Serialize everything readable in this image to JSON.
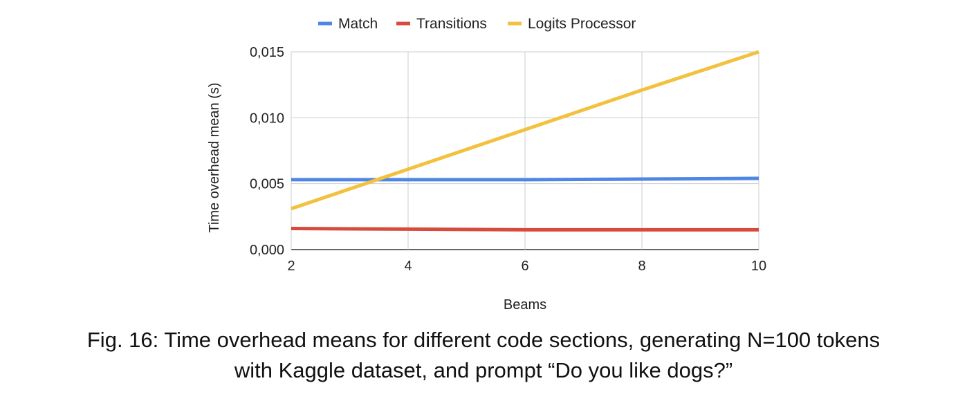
{
  "chart_data": {
    "type": "line",
    "xlabel": "Beams",
    "ylabel": "Time overhead mean (s)",
    "x": [
      2,
      4,
      6,
      8,
      10
    ],
    "xlim": [
      2,
      10
    ],
    "ylim": [
      0,
      0.015
    ],
    "xticks": [
      "2",
      "4",
      "6",
      "8",
      "10"
    ],
    "yticks": [
      "0,000",
      "0,005",
      "0,010",
      "0,015"
    ],
    "legend_position": "top",
    "grid": true,
    "series": [
      {
        "name": "Match",
        "color": "#4f86e6",
        "values": [
          0.0053,
          0.0053,
          0.0053,
          0.00535,
          0.0054
        ]
      },
      {
        "name": "Transitions",
        "color": "#d64b3c",
        "values": [
          0.0016,
          0.00155,
          0.0015,
          0.0015,
          0.0015
        ]
      },
      {
        "name": "Logits Processor",
        "color": "#f2c13e",
        "values": [
          0.0031,
          0.0061,
          0.0091,
          0.0121,
          0.015
        ]
      }
    ]
  },
  "caption": {
    "line1": "Fig. 16: Time overhead means for different code sections, generating N=100 tokens",
    "line2": "with Kaggle dataset, and prompt “Do you like dogs?”"
  }
}
